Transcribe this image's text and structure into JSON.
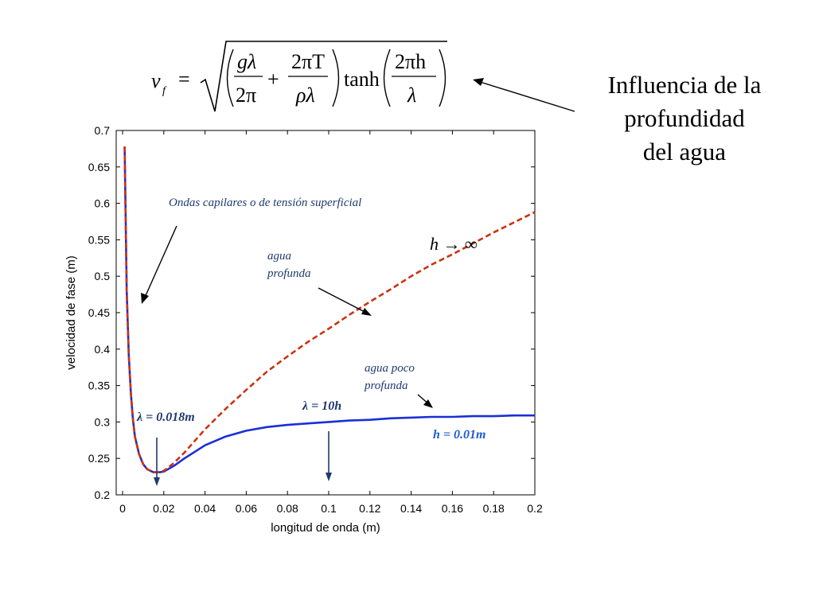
{
  "formula": {
    "lhs": "v",
    "lhs_sub": "f",
    "eq": "=",
    "t1_num": "gλ",
    "t1_den": "2π",
    "plus": "+",
    "t2_num": "2πT",
    "t2_den": "ρλ",
    "func": "tanh",
    "t3_num": "2πh",
    "t3_den": "λ"
  },
  "side_title": {
    "line1": "Influencia de la",
    "line2": "profundidad",
    "line3": "del agua"
  },
  "annotations": {
    "capillary": "Ondas capilares o de tensión superficial",
    "deep": [
      "agua",
      "profunda"
    ],
    "h_inf": "h → ∞",
    "shallow": [
      "agua poco",
      "profunda"
    ],
    "lambda_min": "λ = 0.018m",
    "lambda_10h": "λ = 10h",
    "h_value": "h = 0.01m"
  },
  "chart_data": {
    "type": "line",
    "xlabel": "longitud de onda (m)",
    "ylabel": "velocidad de fase (m)",
    "xlim": [
      0,
      0.2
    ],
    "ylim": [
      0.2,
      0.7
    ],
    "xticks": [
      "0",
      "0.02",
      "0.04",
      "0.06",
      "0.08",
      "0.1",
      "0.12",
      "0.14",
      "0.16",
      "0.18",
      "0.2"
    ],
    "yticks": [
      "0.2",
      "0.25",
      "0.3",
      "0.35",
      "0.4",
      "0.45",
      "0.5",
      "0.55",
      "0.6",
      "0.65",
      "0.7"
    ],
    "grid": false,
    "series": [
      {
        "color": "#cc3311",
        "style": "dashed",
        "x": [
          0.001,
          0.002,
          0.003,
          0.004,
          0.005,
          0.006,
          0.008,
          0.01,
          0.012,
          0.015,
          0.018,
          0.02,
          0.025,
          0.03,
          0.04,
          0.05,
          0.06,
          0.07,
          0.08,
          0.09,
          0.1,
          0.11,
          0.12,
          0.13,
          0.14,
          0.15,
          0.16,
          0.17,
          0.18,
          0.19,
          0.2
        ],
        "values": [
          0.678,
          0.48,
          0.392,
          0.34,
          0.305,
          0.28,
          0.256,
          0.242,
          0.235,
          0.231,
          0.231,
          0.233,
          0.244,
          0.258,
          0.29,
          0.318,
          0.344,
          0.369,
          0.39,
          0.41,
          0.428,
          0.447,
          0.465,
          0.482,
          0.5,
          0.516,
          0.53,
          0.545,
          0.56,
          0.574,
          0.588
        ]
      },
      {
        "color": "#1a2fd6",
        "style": "solid",
        "x": [
          0.001,
          0.002,
          0.003,
          0.004,
          0.005,
          0.006,
          0.008,
          0.01,
          0.012,
          0.015,
          0.018,
          0.02,
          0.025,
          0.03,
          0.04,
          0.05,
          0.06,
          0.07,
          0.08,
          0.09,
          0.1,
          0.11,
          0.12,
          0.13,
          0.14,
          0.15,
          0.16,
          0.17,
          0.18,
          0.19,
          0.2
        ],
        "values": [
          0.678,
          0.48,
          0.392,
          0.34,
          0.305,
          0.28,
          0.256,
          0.242,
          0.235,
          0.231,
          0.231,
          0.232,
          0.24,
          0.25,
          0.268,
          0.28,
          0.288,
          0.293,
          0.296,
          0.298,
          0.3,
          0.302,
          0.303,
          0.305,
          0.306,
          0.307,
          0.307,
          0.308,
          0.308,
          0.309,
          0.309
        ]
      }
    ]
  }
}
